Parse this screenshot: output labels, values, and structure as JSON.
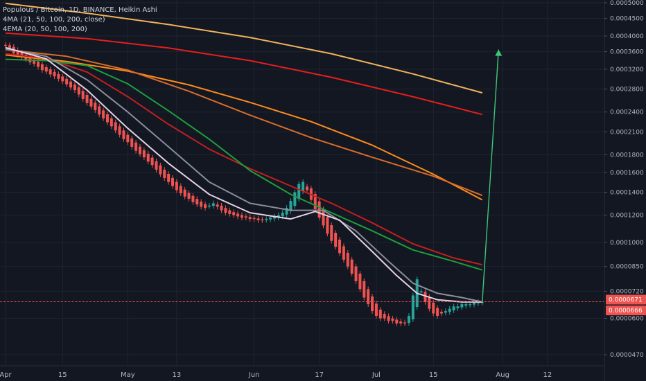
{
  "header": {
    "symbol_line": "Populous / Bitcoin, 1D, BINANCE, Heikin Ashi",
    "ma_line": "4MA (21, 50, 100, 200, close)",
    "ema_line": "4EMA (20, 50, 100, 200)"
  },
  "colors": {
    "background": "#131722",
    "grid": "#1f2433",
    "up": "#26a69a",
    "down": "#ef5350",
    "axis_text": "#b2b5be",
    "current_line": "#ef5350"
  },
  "chart_data": {
    "type": "candlestick",
    "log_scale": true,
    "y_axis_position": "right",
    "ylim": [
      4.55e-05,
      0.0005
    ],
    "y_ticks": [
      "0.0005000",
      "0.0004500",
      "0.0004000",
      "0.0003600",
      "0.0003200",
      "0.0002800",
      "0.0002400",
      "0.0002100",
      "0.0001800",
      "0.0001600",
      "0.0001400",
      "0.0001200",
      "0.0001000",
      "0.0000850",
      "0.0000720",
      "0.0000600",
      "0.0000470"
    ],
    "x_ticks": [
      {
        "label": "Apr",
        "day": 0
      },
      {
        "label": "15",
        "day": 14
      },
      {
        "label": "May",
        "day": 30
      },
      {
        "label": "13",
        "day": 42
      },
      {
        "label": "Jun",
        "day": 61
      },
      {
        "label": "17",
        "day": 77
      },
      {
        "label": "Jul",
        "day": 91
      },
      {
        "label": "15",
        "day": 105
      },
      {
        "label": "Aug",
        "day": 122
      },
      {
        "label": "12",
        "day": 133
      }
    ],
    "x_range": [
      0,
      148
    ],
    "price_labels": [
      {
        "text": "0.0000671",
        "value": 6.71e-05,
        "color": "#ef5350"
      },
      {
        "text": "0.0000666",
        "value": 6.66e-05,
        "color": "#ef5350"
      }
    ],
    "current_line_value": 6.71e-05,
    "closes": [
      0.000375,
      0.000368,
      0.000356,
      0.000352,
      0.000348,
      0.000342,
      0.000335,
      0.000332,
      0.000325,
      0.000318,
      0.000315,
      0.000309,
      0.000305,
      0.0003,
      0.000295,
      0.000289,
      0.000283,
      0.000278,
      0.00027,
      0.000262,
      0.000255,
      0.000249,
      0.000243,
      0.000236,
      0.00023,
      0.000224,
      0.000218,
      0.000212,
      0.000206,
      0.0002,
      0.000196,
      0.00019,
      0.000185,
      0.000181,
      0.000177,
      0.000172,
      0.000168,
      0.000163,
      0.000158,
      0.000154,
      0.00015,
      0.000146,
      0.000142,
      0.000139,
      0.000136,
      0.000134,
      0.000131,
      0.000129,
      0.000127,
      0.000126,
      0.000128,
      0.00013,
      0.000127,
      0.000124,
      0.000122,
      0.000121,
      0.00012,
      0.000119,
      0.000118,
      0.000118,
      0.000117,
      0.000117,
      0.000116,
      0.000116,
      0.000117,
      0.000118,
      0.000119,
      0.00012,
      0.000122,
      0.000126,
      0.000132,
      0.00014,
      0.000148,
      0.00015,
      0.000142,
      0.000133,
      0.000125,
      0.000118,
      0.000112,
      0.000106,
      0.000101,
      9.7e-05,
      9.3e-05,
      8.9e-05,
      8.5e-05,
      8.1e-05,
      7.7e-05,
      7.3e-05,
      6.9e-05,
      6.6e-05,
      6.3e-05,
      6.1e-05,
      6e-05,
      6e-05,
      5.9e-05,
      5.9e-05,
      5.8e-05,
      5.8e-05,
      5.8e-05,
      6.1e-05,
      7e-05,
      7.8e-05,
      7.2e-05,
      6.7e-05,
      6.4e-05,
      6.2e-05,
      6.1e-05,
      6.2e-05,
      6.3e-05,
      6.4e-05,
      6.5e-05,
      6.5e-05,
      6.6e-05,
      6.6e-05,
      6.6e-05,
      6.7e-05,
      6.7e-05,
      6.7e-05
    ],
    "series": [
      {
        "kind": "sma",
        "color": "#f0b35c",
        "values": [
          {
            "x": 0,
            "y": 0.000498
          },
          {
            "x": 20,
            "y": 0.000466
          },
          {
            "x": 40,
            "y": 0.000432
          },
          {
            "x": 60,
            "y": 0.000396
          },
          {
            "x": 80,
            "y": 0.000355
          },
          {
            "x": 100,
            "y": 0.00031
          },
          {
            "x": 117,
            "y": 0.000273
          }
        ]
      },
      {
        "kind": "sma",
        "color": "#e61e1e",
        "values": [
          {
            "x": 0,
            "y": 0.000408
          },
          {
            "x": 20,
            "y": 0.000393
          },
          {
            "x": 40,
            "y": 0.000369
          },
          {
            "x": 60,
            "y": 0.000339
          },
          {
            "x": 80,
            "y": 0.000303
          },
          {
            "x": 100,
            "y": 0.000266
          },
          {
            "x": 117,
            "y": 0.000236
          }
        ]
      },
      {
        "kind": "sma",
        "color": "#ff8c1a",
        "values": [
          {
            "x": 0,
            "y": 0.000352
          },
          {
            "x": 15,
            "y": 0.000337
          },
          {
            "x": 30,
            "y": 0.000316
          },
          {
            "x": 45,
            "y": 0.000288
          },
          {
            "x": 60,
            "y": 0.000256
          },
          {
            "x": 75,
            "y": 0.000225
          },
          {
            "x": 90,
            "y": 0.000192
          },
          {
            "x": 105,
            "y": 0.000158
          },
          {
            "x": 117,
            "y": 0.000133
          }
        ]
      },
      {
        "kind": "ema",
        "color": "#d96c2a",
        "values": [
          {
            "x": 0,
            "y": 0.000365
          },
          {
            "x": 15,
            "y": 0.000349
          },
          {
            "x": 30,
            "y": 0.000318
          },
          {
            "x": 45,
            "y": 0.000276
          },
          {
            "x": 60,
            "y": 0.000235
          },
          {
            "x": 75,
            "y": 0.000202
          },
          {
            "x": 90,
            "y": 0.000177
          },
          {
            "x": 105,
            "y": 0.000156
          },
          {
            "x": 117,
            "y": 0.000137
          }
        ]
      },
      {
        "kind": "ema",
        "color": "#c21f1f",
        "values": [
          {
            "x": 0,
            "y": 0.000355
          },
          {
            "x": 10,
            "y": 0.000344
          },
          {
            "x": 20,
            "y": 0.000314
          },
          {
            "x": 30,
            "y": 0.000266
          },
          {
            "x": 40,
            "y": 0.000221
          },
          {
            "x": 50,
            "y": 0.000187
          },
          {
            "x": 60,
            "y": 0.000164
          },
          {
            "x": 70,
            "y": 0.000146
          },
          {
            "x": 80,
            "y": 0.00013
          },
          {
            "x": 90,
            "y": 0.000114
          },
          {
            "x": 100,
            "y": 9.9e-05
          },
          {
            "x": 110,
            "y": 9e-05
          },
          {
            "x": 117,
            "y": 8.6e-05
          }
        ]
      },
      {
        "kind": "sma",
        "color": "#1e9e3c",
        "values": [
          {
            "x": 0,
            "y": 0.000342
          },
          {
            "x": 10,
            "y": 0.000339
          },
          {
            "x": 20,
            "y": 0.000328
          },
          {
            "x": 30,
            "y": 0.00029
          },
          {
            "x": 40,
            "y": 0.000242
          },
          {
            "x": 50,
            "y": 0.0002
          },
          {
            "x": 60,
            "y": 0.000162
          },
          {
            "x": 70,
            "y": 0.000138
          },
          {
            "x": 78,
            "y": 0.000125
          },
          {
            "x": 90,
            "y": 0.000108
          },
          {
            "x": 100,
            "y": 9.5e-05
          },
          {
            "x": 110,
            "y": 8.8e-05
          },
          {
            "x": 117,
            "y": 8.3e-05
          }
        ]
      },
      {
        "kind": "ema",
        "color": "#8a8f9c",
        "values": [
          {
            "x": 0,
            "y": 0.000367
          },
          {
            "x": 10,
            "y": 0.000349
          },
          {
            "x": 20,
            "y": 0.000298
          },
          {
            "x": 30,
            "y": 0.00024
          },
          {
            "x": 40,
            "y": 0.00019
          },
          {
            "x": 50,
            "y": 0.00015
          },
          {
            "x": 60,
            "y": 0.00013
          },
          {
            "x": 70,
            "y": 0.000124
          },
          {
            "x": 78,
            "y": 0.000124
          },
          {
            "x": 86,
            "y": 0.000108
          },
          {
            "x": 94,
            "y": 8.8e-05
          },
          {
            "x": 100,
            "y": 7.6e-05
          },
          {
            "x": 106,
            "y": 7.1e-05
          },
          {
            "x": 112,
            "y": 6.9e-05
          },
          {
            "x": 117,
            "y": 6.7e-05
          }
        ]
      },
      {
        "kind": "sma",
        "color": "#e6d3e6",
        "values": [
          {
            "x": 0,
            "y": 0.00037
          },
          {
            "x": 10,
            "y": 0.000343
          },
          {
            "x": 20,
            "y": 0.000278
          },
          {
            "x": 30,
            "y": 0.000215
          },
          {
            "x": 40,
            "y": 0.00017
          },
          {
            "x": 50,
            "y": 0.000138
          },
          {
            "x": 60,
            "y": 0.000122
          },
          {
            "x": 70,
            "y": 0.000117
          },
          {
            "x": 76,
            "y": 0.000123
          },
          {
            "x": 82,
            "y": 0.000116
          },
          {
            "x": 90,
            "y": 9.4e-05
          },
          {
            "x": 96,
            "y": 8e-05
          },
          {
            "x": 101,
            "y": 7.1e-05
          },
          {
            "x": 106,
            "y": 6.8e-05
          },
          {
            "x": 112,
            "y": 6.7e-05
          },
          {
            "x": 117,
            "y": 6.7e-05
          }
        ]
      },
      {
        "kind": "projection",
        "color": "#3ec87a",
        "values": [
          {
            "x": 117,
            "y": 6.71e-05
          },
          {
            "x": 121,
            "y": 0.000365
          }
        ]
      }
    ]
  }
}
